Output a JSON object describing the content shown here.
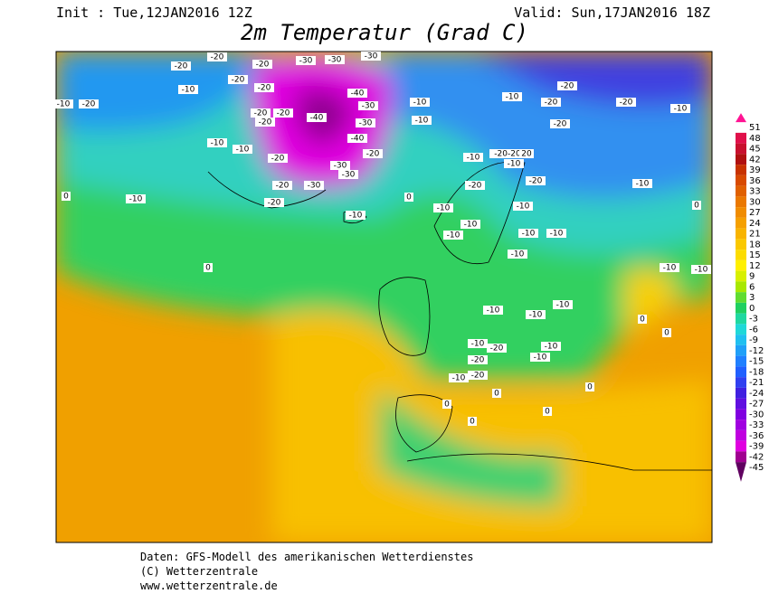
{
  "header": {
    "init": "Init : Tue,12JAN2016 12Z",
    "valid": "Valid: Sun,17JAN2016 18Z",
    "title": "2m Temperatur (Grad C)"
  },
  "colorbar": {
    "levels": [
      51,
      48,
      45,
      42,
      39,
      36,
      33,
      30,
      27,
      24,
      21,
      18,
      15,
      12,
      9,
      6,
      3,
      0,
      -3,
      -6,
      -9,
      -12,
      -15,
      -18,
      -21,
      -24,
      -27,
      -30,
      -33,
      -36,
      -39,
      -42,
      -45
    ],
    "colors": [
      "#ff1493",
      "#e0104a",
      "#c8102e",
      "#b01010",
      "#c83200",
      "#d84a00",
      "#e06000",
      "#ea7800",
      "#f08c00",
      "#f5a000",
      "#f8b400",
      "#fac800",
      "#fcdc00",
      "#fff000",
      "#d8f000",
      "#a8e800",
      "#60dc30",
      "#20d060",
      "#20d8a0",
      "#20d8d8",
      "#20c0f0",
      "#20a0f8",
      "#2080ff",
      "#2060ff",
      "#3040f0",
      "#4020e0",
      "#6010e0",
      "#8000e0",
      "#a000e0",
      "#c000e0",
      "#e000e0",
      "#a00090",
      "#600060"
    ]
  },
  "map_labels": [
    "-20",
    "-20",
    "-20",
    "-20",
    "-30",
    "-30",
    "-30",
    "-10",
    "-10",
    "-20",
    "-20",
    "-40",
    "-30",
    "-20",
    "-20",
    "-40",
    "-30",
    "-10",
    "-10",
    "-10",
    "-20",
    "-20",
    "-20",
    "-10",
    "-20",
    "-10",
    "-20",
    "-40",
    "-20",
    "-10",
    "-30",
    "-20",
    "-30",
    "-20",
    "-30",
    "-20",
    "-10",
    "0",
    "-10",
    "0",
    "-20-20",
    "20",
    "-10",
    "-10",
    "-20",
    "-20",
    "-10",
    "-10",
    "-10",
    "-10",
    "0",
    "-10",
    "-10",
    "-10",
    "-10",
    "-10",
    "-10",
    "0",
    "-10",
    "-10",
    "-10",
    "0",
    "-10",
    "-20",
    "-10",
    "-20",
    "-10",
    "-20",
    "-10",
    "0",
    "0",
    "0",
    "0",
    "0",
    "0"
  ],
  "footer": {
    "line1": "Daten: GFS-Modell des amerikanischen Wetterdienstes",
    "line2": "(C) Wetterzentrale",
    "line3": "www.wetterzentrale.de"
  }
}
